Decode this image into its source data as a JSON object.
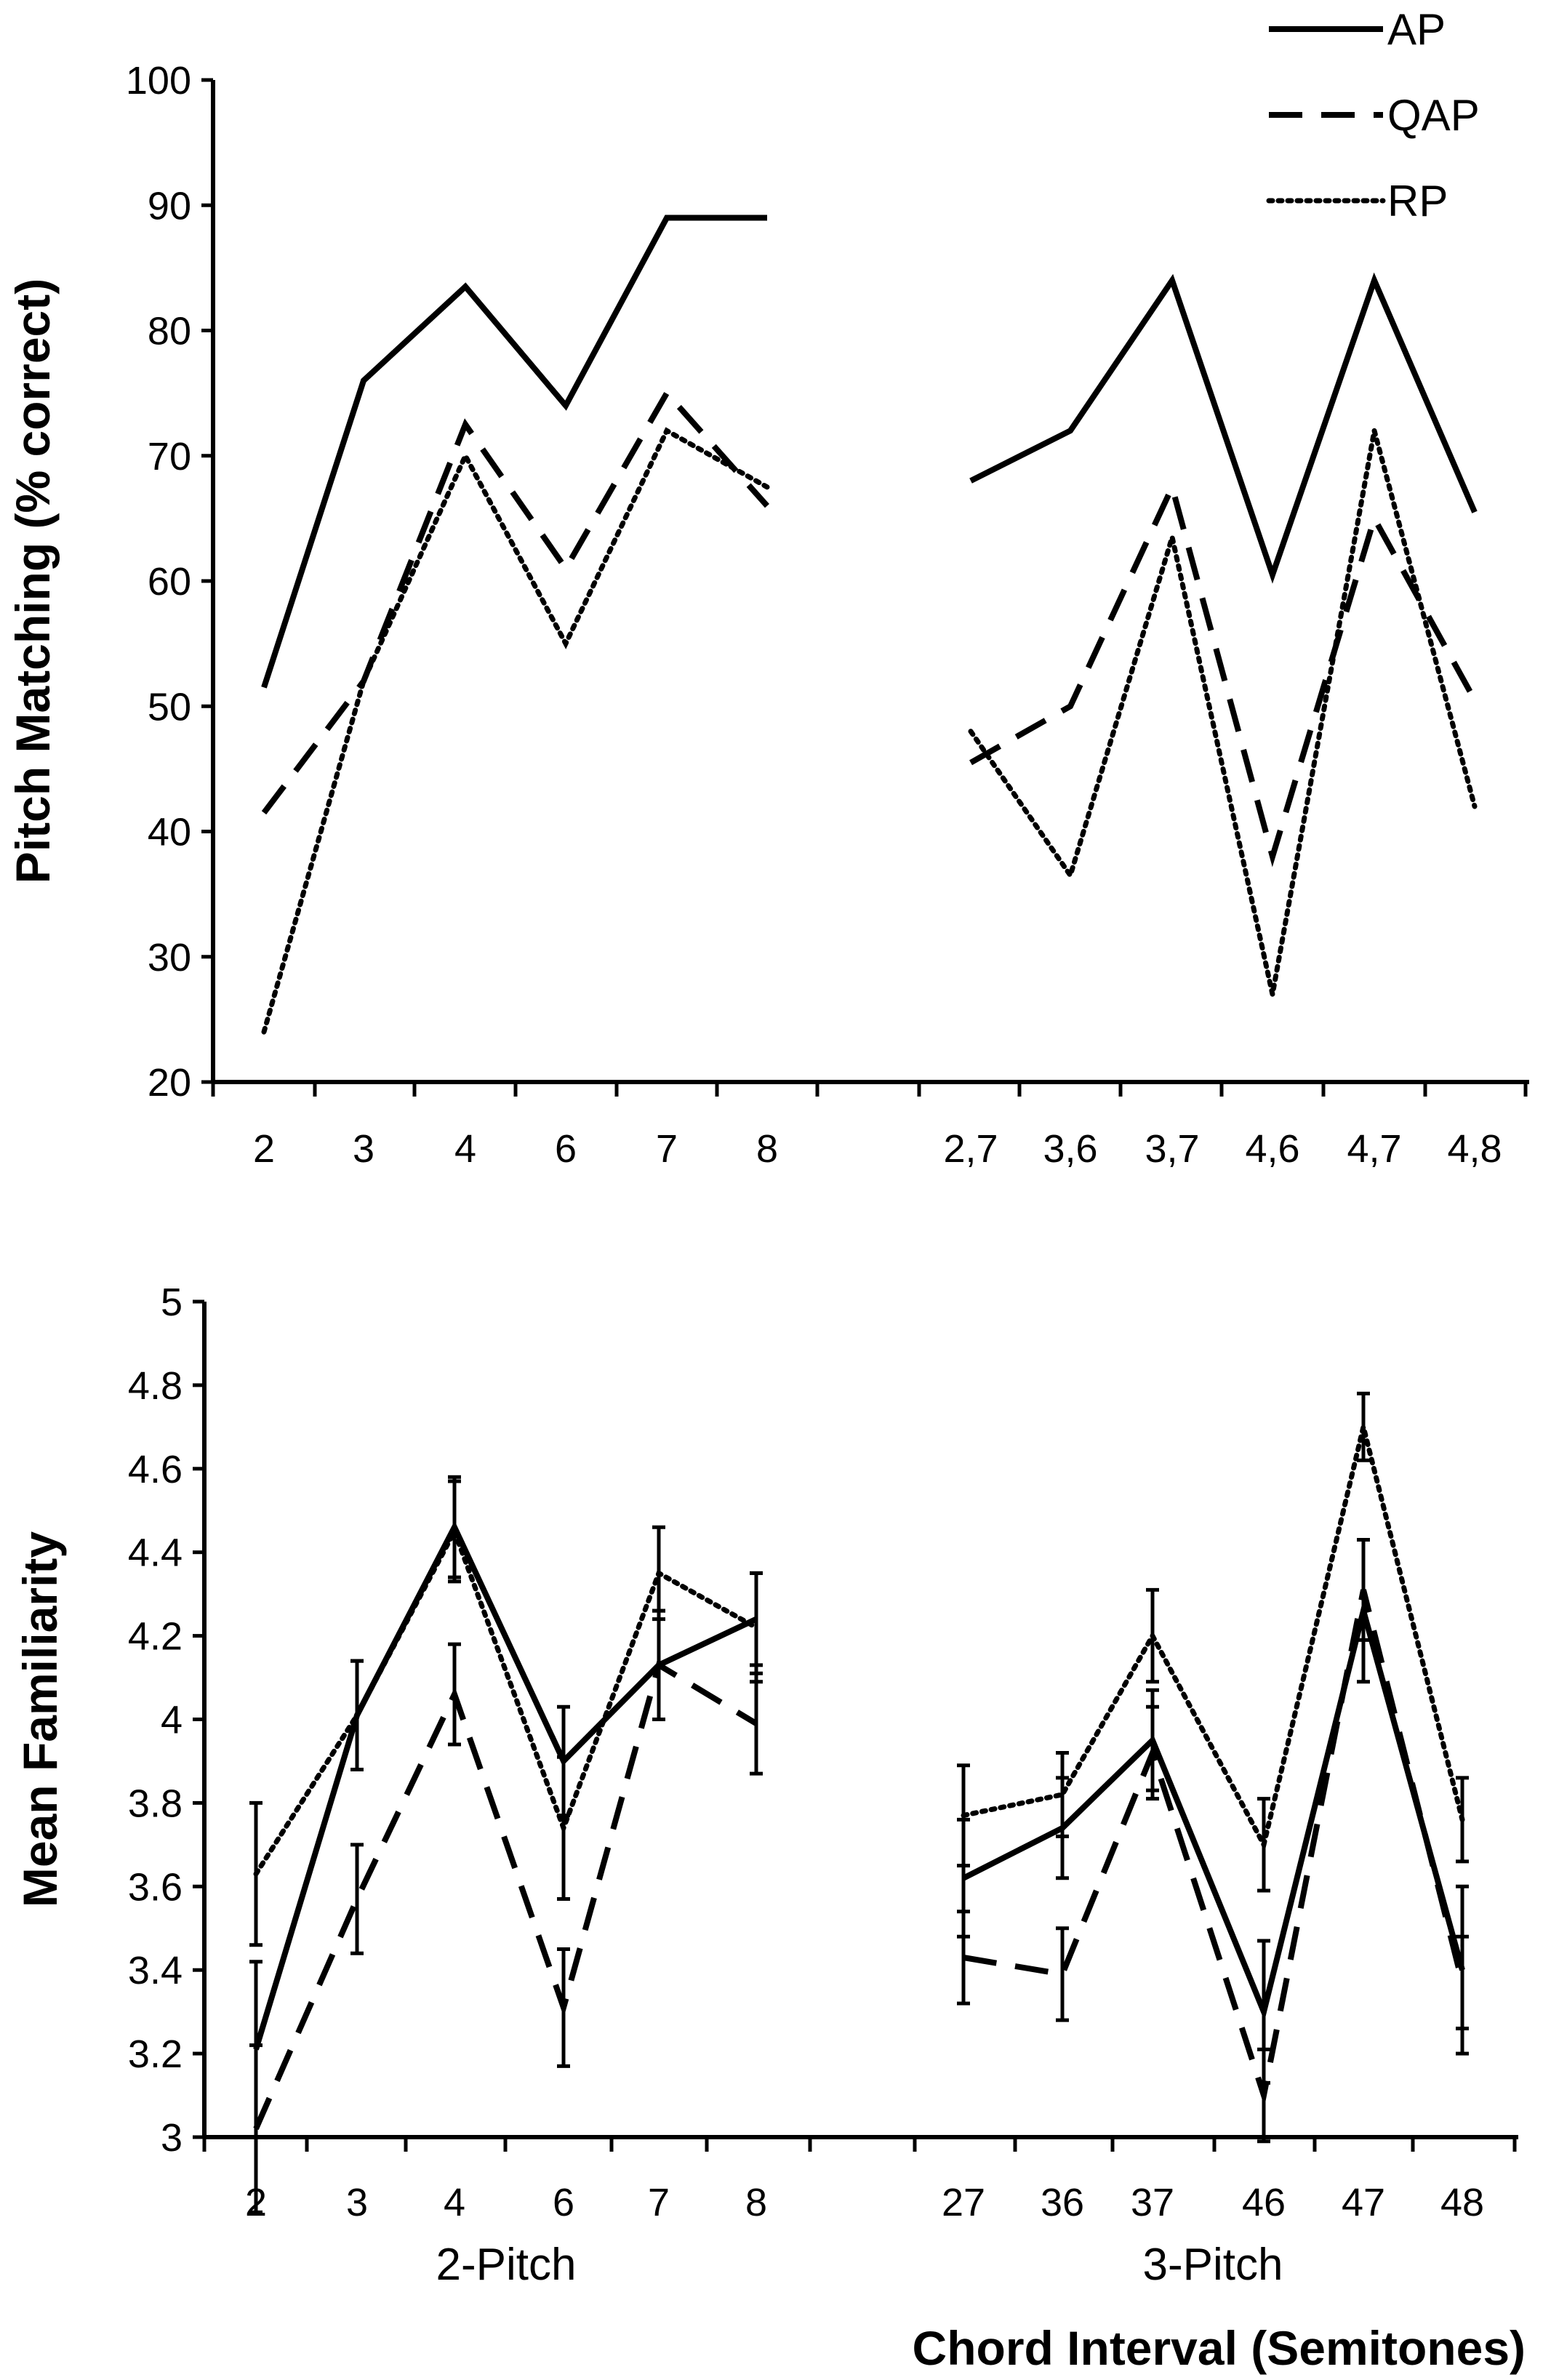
{
  "chart_data": [
    {
      "type": "line",
      "ylabel": "Pitch Matching (% correct)",
      "ylim": [
        20,
        100
      ],
      "yticks": [
        20,
        30,
        40,
        50,
        60,
        70,
        80,
        90,
        100
      ],
      "groups": [
        {
          "categories": [
            "2",
            "3",
            "4",
            "6",
            "7",
            "8"
          ],
          "series": [
            {
              "name": "AP",
              "values": [
                51.5,
                76,
                83.5,
                74,
                89,
                89
              ]
            },
            {
              "name": "QAP",
              "values": [
                41.5,
                52,
                72.5,
                61,
                75,
                66
              ]
            },
            {
              "name": "RP",
              "values": [
                24,
                52,
                70,
                55,
                72,
                67.5
              ]
            }
          ]
        },
        {
          "categories": [
            "2,7",
            "3,6",
            "3,7",
            "4,6",
            "4,7",
            "4,8"
          ],
          "series": [
            {
              "name": "AP",
              "values": [
                68,
                72,
                84,
                60.5,
                84,
                65.5
              ]
            },
            {
              "name": "QAP",
              "values": [
                45.5,
                50,
                67.5,
                38,
                65,
                50.5
              ]
            },
            {
              "name": "RP",
              "values": [
                48,
                36.5,
                63.5,
                27,
                72,
                42
              ]
            }
          ]
        }
      ]
    },
    {
      "type": "line",
      "ylabel": "Mean Familiarity",
      "xlabel": "Chord Interval (Semitones)",
      "ylim": [
        3,
        5
      ],
      "yticks": [
        "3",
        "3.2",
        "3.4",
        "3.6",
        "3.8",
        "4",
        "4.2",
        "4.4",
        "4.6",
        "4.8",
        "5"
      ],
      "error_bars": true,
      "groups": [
        {
          "group_label": "2-Pitch",
          "categories": [
            "2",
            "3",
            "4",
            "6",
            "7",
            "8"
          ],
          "series": [
            {
              "name": "AP",
              "values": [
                3.21,
                4.01,
                4.46,
                3.9,
                4.13,
                4.24
              ],
              "errors": [
                0.21,
                0.13,
                0.12,
                0.13,
                0.13,
                0.11
              ]
            },
            {
              "name": "QAP",
              "values": [
                3.02,
                3.57,
                4.06,
                3.31,
                4.13,
                3.99
              ],
              "errors": [
                0.2,
                0.13,
                0.12,
                0.14,
                0.13,
                0.12
              ]
            },
            {
              "name": "RP",
              "values": [
                3.63,
                4.01,
                4.45,
                3.74,
                4.35,
                4.22
              ],
              "errors": [
                0.17,
                0.13,
                0.12,
                0.17,
                0.11,
                0.13
              ]
            }
          ]
        },
        {
          "group_label": "3-Pitch",
          "categories": [
            "27",
            "36",
            "37",
            "46",
            "47",
            "48"
          ],
          "series": [
            {
              "name": "AP",
              "values": [
                3.62,
                3.74,
                3.95,
                3.3,
                4.26,
                3.4
              ],
              "errors": [
                0.14,
                0.12,
                0.12,
                0.17,
                0.17,
                0.2
              ]
            },
            {
              "name": "QAP",
              "values": [
                3.43,
                3.39,
                3.92,
                3.1,
                4.31,
                3.37
              ],
              "errors": [
                0.11,
                0.11,
                0.11,
                0.11,
                0.12,
                0.11
              ]
            },
            {
              "name": "RP",
              "values": [
                3.77,
                3.82,
                4.2,
                3.7,
                4.7,
                3.76
              ],
              "errors": [
                0.12,
                0.1,
                0.11,
                0.11,
                0.08,
                0.1
              ]
            }
          ]
        }
      ]
    }
  ],
  "legend": [
    {
      "name": "AP",
      "style": "solid"
    },
    {
      "name": "QAP",
      "style": "dashed"
    },
    {
      "name": "RP",
      "style": "dotted"
    }
  ],
  "colors": {
    "line": "#000000",
    "background": "#ffffff"
  }
}
